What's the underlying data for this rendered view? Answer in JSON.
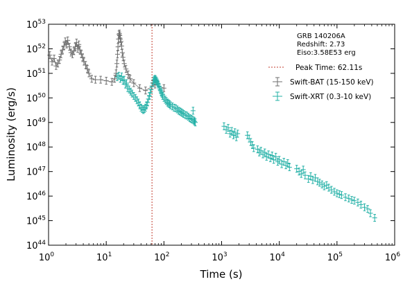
{
  "chart_data": {
    "type": "scatter",
    "title": "",
    "xlabel": "Time (s)",
    "ylabel": "Luminosity (erg/s)",
    "xscale": "log",
    "yscale": "log",
    "xlim": [
      1,
      1000000
    ],
    "ylim": [
      1e+44,
      1e+53
    ],
    "x_tick_base": "10",
    "x_tick_exponents": [
      "0",
      "1",
      "2",
      "3",
      "4",
      "5",
      "6"
    ],
    "y_tick_base": "10",
    "y_tick_exponents": [
      "44",
      "45",
      "46",
      "47",
      "48",
      "49",
      "50",
      "51",
      "52",
      "53"
    ],
    "grid": false,
    "legend_position": "top-right",
    "annotations": {
      "grb_name": "GRB 140206A",
      "redshift": "Redshift: 2.73",
      "eiso": "Eiso:3.58E53 erg"
    },
    "peak_time": {
      "label": "Peak Time: 62.11s",
      "x": 62.11,
      "color": "#c0392b"
    },
    "series": [
      {
        "name": "Swift-BAT (15-150 keV)",
        "color": "#6e6e6e",
        "points": [
          [
            1.05,
            5.5e+51
          ],
          [
            1.15,
            3e+51
          ],
          [
            1.25,
            4e+51
          ],
          [
            1.35,
            2e+51
          ],
          [
            1.45,
            2.5e+51
          ],
          [
            1.55,
            3.5e+51
          ],
          [
            1.65,
            6e+51
          ],
          [
            1.75,
            9e+51
          ],
          [
            1.85,
            1.3e+52
          ],
          [
            1.95,
            2e+52
          ],
          [
            2.05,
            1.5e+52
          ],
          [
            2.15,
            2.2e+52
          ],
          [
            2.3,
            1.2e+52
          ],
          [
            2.45,
            7e+51
          ],
          [
            2.6,
            6e+51
          ],
          [
            2.75,
            8e+51
          ],
          [
            2.9,
            1.2e+52
          ],
          [
            3.05,
            1.8e+52
          ],
          [
            3.2,
            1e+52
          ],
          [
            3.35,
            1.5e+52
          ],
          [
            3.5,
            9e+51
          ],
          [
            3.7,
            6e+51
          ],
          [
            3.9,
            4.5e+51
          ],
          [
            4.1,
            3e+51
          ],
          [
            4.4,
            2.2e+51
          ],
          [
            4.7,
            1.5e+51
          ],
          [
            5.0,
            1e+51
          ],
          [
            5.6,
            6e+50
          ],
          [
            6.5,
            5.5e+50
          ],
          [
            8.0,
            5.5e+50
          ],
          [
            10.0,
            5e+50
          ],
          [
            12.5,
            4.5e+50
          ],
          [
            14.0,
            6e+50
          ],
          [
            14.8,
            1e+51
          ],
          [
            15.3,
            2.5e+51
          ],
          [
            15.7,
            6e+51
          ],
          [
            16.0,
            1.2e+52
          ],
          [
            16.3,
            2.5e+52
          ],
          [
            16.6,
            3.8e+52
          ],
          [
            16.9,
            4.2e+52
          ],
          [
            17.2,
            3.5e+52
          ],
          [
            17.6,
            2.5e+52
          ],
          [
            18.0,
            2e+52
          ],
          [
            18.5,
            1.3e+52
          ],
          [
            19.0,
            7e+51
          ],
          [
            19.5,
            4.5e+51
          ],
          [
            20.5,
            2.5e+51
          ],
          [
            22.0,
            1.5e+51
          ],
          [
            24.0,
            9e+50
          ],
          [
            26.0,
            6e+50
          ],
          [
            30.0,
            4e+50
          ],
          [
            38.0,
            2.5e+50
          ],
          [
            48.0,
            2e+50
          ],
          [
            70.0,
            3.5e+50
          ],
          [
            100.0,
            2.5e+50
          ]
        ]
      },
      {
        "name": "Swift-XRT (0.3-10 keV)",
        "color": "#22b0a6",
        "points": [
          [
            15.5,
            7e+50
          ],
          [
            16.5,
            8e+50
          ],
          [
            17.5,
            6e+50
          ],
          [
            18.5,
            7.5e+50
          ],
          [
            19.5,
            5e+50
          ],
          [
            20.5,
            5.5e+50
          ],
          [
            21.5,
            3.5e+50
          ],
          [
            22.5,
            4e+50
          ],
          [
            23.5,
            2.5e+50
          ],
          [
            25.0,
            2.2e+50
          ],
          [
            26.5,
            1.8e+50
          ],
          [
            28.0,
            1.5e+50
          ],
          [
            30.0,
            1.2e+50
          ],
          [
            32.0,
            1e+50
          ],
          [
            34.0,
            8e+49
          ],
          [
            36.0,
            6.5e+49
          ],
          [
            38.0,
            5e+49
          ],
          [
            40.0,
            4e+49
          ],
          [
            42.0,
            3.5e+49
          ],
          [
            44.0,
            3.2e+49
          ],
          [
            46.0,
            3.5e+49
          ],
          [
            48.0,
            4e+49
          ],
          [
            50.0,
            5e+49
          ],
          [
            52.0,
            6.5e+49
          ],
          [
            54.0,
            9e+49
          ],
          [
            56.0,
            1.2e+50
          ],
          [
            58.0,
            1.6e+50
          ],
          [
            60.0,
            2.2e+50
          ],
          [
            62.0,
            3e+50
          ],
          [
            64.0,
            4e+50
          ],
          [
            66.0,
            5e+50
          ],
          [
            68.0,
            5.5e+50
          ],
          [
            70.0,
            6e+50
          ],
          [
            72.0,
            5.5e+50
          ],
          [
            74.0,
            5e+50
          ],
          [
            76.0,
            4.5e+50
          ],
          [
            78.0,
            4e+50
          ],
          [
            80.0,
            3.5e+50
          ],
          [
            83.0,
            2.8e+50
          ],
          [
            86.0,
            2.2e+50
          ],
          [
            89.0,
            1.8e+50
          ],
          [
            92.0,
            1.5e+50
          ],
          [
            95.0,
            1.2e+50
          ],
          [
            100.0,
            1e+50
          ],
          [
            105.0,
            8.5e+49
          ],
          [
            110.0,
            7.5e+49
          ],
          [
            115.0,
            6.5e+49
          ],
          [
            120.0,
            6e+49
          ],
          [
            125.0,
            5.5e+49
          ],
          [
            130.0,
            5e+49
          ],
          [
            140.0,
            4.5e+49
          ],
          [
            150.0,
            4e+49
          ],
          [
            160.0,
            3.8e+49
          ],
          [
            170.0,
            3.4e+49
          ],
          [
            180.0,
            3e+49
          ],
          [
            190.0,
            2.8e+49
          ],
          [
            200.0,
            2.6e+49
          ],
          [
            210.0,
            2.4e+49
          ],
          [
            220.0,
            2.2e+49
          ],
          [
            235.0,
            2e+49
          ],
          [
            250.0,
            1.9e+49
          ],
          [
            265.0,
            1.7e+49
          ],
          [
            280.0,
            1.5e+49
          ],
          [
            295.0,
            1.4e+49
          ],
          [
            310.0,
            1.3e+49
          ],
          [
            320.0,
            3e+49
          ],
          [
            330.0,
            1.2e+49
          ],
          [
            340.0,
            1.1e+49
          ],
          [
            350.0,
            1e+49
          ],
          [
            1100.0,
            7e+48
          ],
          [
            1200.0,
            5e+48
          ],
          [
            1300.0,
            6e+48
          ],
          [
            1400.0,
            3.5e+48
          ],
          [
            1500.0,
            4.5e+48
          ],
          [
            1600.0,
            3e+48
          ],
          [
            1700.0,
            4e+48
          ],
          [
            1800.0,
            2.5e+48
          ],
          [
            1900.0,
            3.5e+48
          ],
          [
            2800.0,
            3e+48
          ],
          [
            3000.0,
            2.2e+48
          ],
          [
            3200.0,
            1.6e+48
          ],
          [
            3400.0,
            1.2e+48
          ],
          [
            3600.0,
            9e+47
          ],
          [
            4200.0,
            8e+47
          ],
          [
            4500.0,
            6e+47
          ],
          [
            4800.0,
            7e+47
          ],
          [
            5200.0,
            5e+47
          ],
          [
            5600.0,
            6e+47
          ],
          [
            6000.0,
            4e+47
          ],
          [
            6500.0,
            5e+47
          ],
          [
            7000.0,
            3.5e+47
          ],
          [
            7500.0,
            4.5e+47
          ],
          [
            8000.0,
            3e+47
          ],
          [
            8700.0,
            4e+47
          ],
          [
            9400.0,
            2.5e+47
          ],
          [
            10000.0,
            3e+47
          ],
          [
            11000.0,
            2e+47
          ],
          [
            12000.0,
            2.5e+47
          ],
          [
            13000.0,
            1.8e+47
          ],
          [
            14000.0,
            2.2e+47
          ],
          [
            15000.0,
            1.5e+47
          ],
          [
            20000.0,
            1.3e+47
          ],
          [
            22000.0,
            1e+47
          ],
          [
            24000.0,
            8e+46
          ],
          [
            26000.0,
            1.2e+47
          ],
          [
            28000.0,
            7e+46
          ],
          [
            32000.0,
            5e+46
          ],
          [
            35000.0,
            6.5e+46
          ],
          [
            38000.0,
            4.5e+46
          ],
          [
            42000.0,
            5.5e+46
          ],
          [
            46000.0,
            4e+46
          ],
          [
            50000.0,
            3.5e+46
          ],
          [
            55000.0,
            3e+46
          ],
          [
            60000.0,
            2.5e+46
          ],
          [
            66000.0,
            2.8e+46
          ],
          [
            72000.0,
            2.2e+46
          ],
          [
            80000.0,
            1.8e+46
          ],
          [
            90000.0,
            1.5e+46
          ],
          [
            100000.0,
            1.3e+46
          ],
          [
            110000.0,
            1.2e+46
          ],
          [
            120000.0,
            1.1e+46
          ],
          [
            140000.0,
            9e+45
          ],
          [
            160000.0,
            8e+45
          ],
          [
            180000.0,
            7e+45
          ],
          [
            200000.0,
            6.5e+45
          ],
          [
            230000.0,
            5.5e+45
          ],
          [
            260000.0,
            4.5e+45
          ],
          [
            300000.0,
            3.5e+45
          ],
          [
            340000.0,
            3e+45
          ],
          [
            380000.0,
            2e+45
          ],
          [
            450000.0,
            1.3e+45
          ]
        ]
      }
    ]
  }
}
